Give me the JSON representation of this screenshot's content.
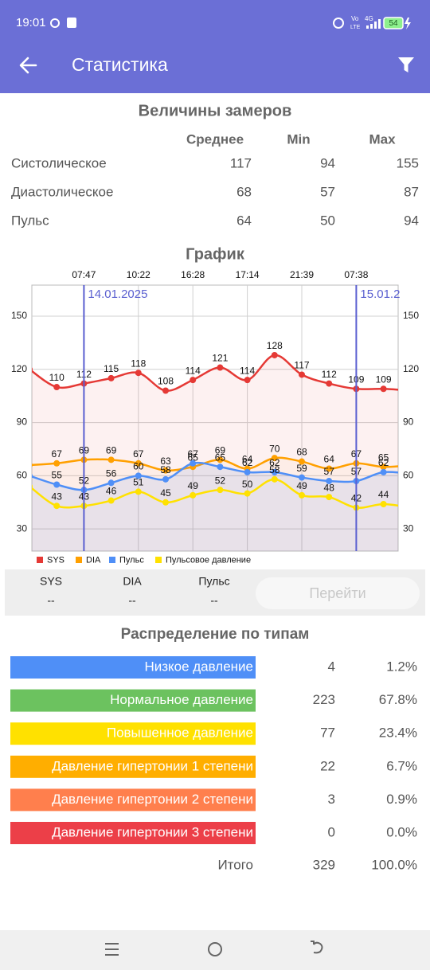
{
  "status_bar": {
    "time": "19:01",
    "network": [
      "Vo",
      "LTE",
      "4G"
    ],
    "battery": 54
  },
  "app_bar": {
    "title": "Статистика"
  },
  "measurements": {
    "title": "Величины замеров",
    "columns": [
      "Среднее",
      "Min",
      "Max"
    ],
    "rows": [
      {
        "label": "Систолическое",
        "values": [
          117,
          94,
          155
        ]
      },
      {
        "label": "Диастолическое",
        "values": [
          68,
          57,
          87
        ]
      },
      {
        "label": "Пульс",
        "values": [
          64,
          50,
          94
        ]
      }
    ]
  },
  "chart_data": {
    "type": "line",
    "title": "График",
    "categories": [
      null,
      null,
      "07:47",
      null,
      "10:22",
      null,
      "16:28",
      null,
      "17:14",
      null,
      "21:39",
      null,
      "07:38",
      null,
      null
    ],
    "series": [
      {
        "name": "SYS",
        "color": "#e53935",
        "values": [
          120,
          110,
          112,
          115,
          118,
          108,
          114,
          121,
          114,
          128,
          117,
          112,
          109,
          109,
          108
        ]
      },
      {
        "name": "DIA",
        "color": "#ffa000",
        "values": [
          66,
          67,
          69,
          69,
          67,
          63,
          65,
          69,
          64,
          70,
          68,
          64,
          67,
          65,
          66
        ]
      },
      {
        "name": "Пульс",
        "color": "#4f8ff7",
        "values": [
          60,
          55,
          52,
          56,
          60,
          58,
          67,
          65,
          62,
          62,
          59,
          57,
          57,
          62,
          61
        ]
      },
      {
        "name": "Пульсовое давление",
        "color": "#ffe100",
        "values": [
          54,
          43,
          43,
          46,
          51,
          45,
          49,
          52,
          50,
          58,
          49,
          48,
          42,
          44,
          42
        ]
      }
    ],
    "ylim": [
      17.5,
      167.5
    ],
    "yticks": [
      30,
      60,
      90,
      120,
      150
    ],
    "grid": true,
    "legend": "bottom-left",
    "markers": [
      {
        "x": 2,
        "label": "14.01.2025"
      },
      {
        "x": 12,
        "label": "15.01.2"
      }
    ]
  },
  "selection": {
    "fields": [
      {
        "label": "SYS",
        "value": "--"
      },
      {
        "label": "DIA",
        "value": "--"
      },
      {
        "label": "Пульс",
        "value": "--"
      }
    ],
    "button": "Перейти"
  },
  "distribution": {
    "title": "Распределение по типам",
    "rows": [
      {
        "label": "Низкое давление",
        "color": "#4f8ff7",
        "count": 4,
        "percent": "1.2%"
      },
      {
        "label": "Нормальное давление",
        "color": "#6cc25f",
        "count": 223,
        "percent": "67.8%"
      },
      {
        "label": "Повышенное давление",
        "color": "#ffe100",
        "count": 77,
        "percent": "23.4%"
      },
      {
        "label": "Давление гипертонии 1 степени",
        "color": "#ffae00",
        "count": 22,
        "percent": "6.7%"
      },
      {
        "label": "Давление гипертонии 2 степени",
        "color": "#ff7f4d",
        "count": 3,
        "percent": "0.9%"
      },
      {
        "label": "Давление гипертонии 3 степени",
        "color": "#ec3f48",
        "count": 0,
        "percent": "0.0%"
      }
    ],
    "total": {
      "label": "Итого",
      "count": 329,
      "percent": "100.0%"
    }
  }
}
